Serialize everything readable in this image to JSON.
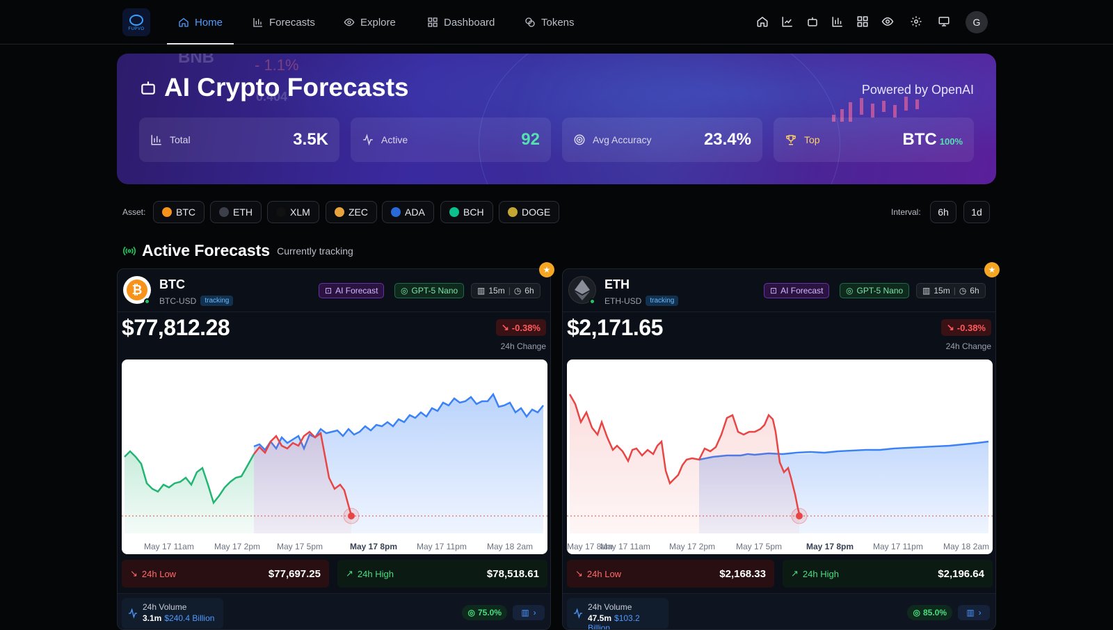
{
  "nav": {
    "logo_text": "FUPVO",
    "items": [
      {
        "label": "Home"
      },
      {
        "label": "Forecasts"
      },
      {
        "label": "Explore"
      },
      {
        "label": "Dashboard"
      },
      {
        "label": "Tokens"
      }
    ],
    "avatar_initial": "G"
  },
  "hero": {
    "title": "AI Crypto Forecasts",
    "powered_by": "Powered by OpenAI",
    "bg_ticker": "BNB",
    "bg_pct": "- 1.1%",
    "bg_num": "0.404",
    "stats": [
      {
        "label": "Total",
        "value": "3.5K",
        "icon": "bar-chart-icon"
      },
      {
        "label": "Active",
        "value": "92",
        "icon": "activity-icon"
      },
      {
        "label": "Avg Accuracy",
        "value": "23.4%",
        "icon": "target-icon"
      },
      {
        "label": "Top",
        "value": "BTC",
        "sub": "100%",
        "icon": "trophy-icon"
      }
    ]
  },
  "filters": {
    "asset_label": "Asset:",
    "assets": [
      "BTC",
      "ETH",
      "XLM",
      "ZEC",
      "ADA",
      "BCH",
      "DOGE"
    ],
    "interval_label": "Interval:",
    "intervals": [
      "6h",
      "1d"
    ]
  },
  "section": {
    "title": "Active Forecasts",
    "subtitle": "Currently tracking"
  },
  "cards": [
    {
      "symbol": "BTC",
      "pair": "BTC-USD",
      "tracking": "tracking",
      "badge_ai": "AI Forecast",
      "badge_model": "GPT-5 Nano",
      "interval_a": "15m",
      "interval_b": "6h",
      "price": "$77,812.28",
      "change": "-0.38%",
      "change_label": "24h Change",
      "low_label": "24h Low",
      "low_value": "$77,697.25",
      "high_label": "24h High",
      "high_value": "$78,518.61",
      "volume_label": "24h Volume",
      "volume": "3.1m",
      "volume_usd": "$240.4 Billion",
      "accuracy": "75.0%",
      "x_ticks": [
        "May 17 11am",
        "May 17 2pm",
        "May 17 5pm",
        "May 17 8pm",
        "May 17 11pm",
        "May 18 2am"
      ],
      "colors": {
        "history": "#22b573",
        "actual": "#e84545",
        "forecast": "#3b82f6"
      }
    },
    {
      "symbol": "ETH",
      "pair": "ETH-USD",
      "tracking": "tracking",
      "badge_ai": "AI Forecast",
      "badge_model": "GPT-5 Nano",
      "interval_a": "15m",
      "interval_b": "6h",
      "price": "$2,171.65",
      "change": "-0.38%",
      "change_label": "24h Change",
      "low_label": "24h Low",
      "low_value": "$2,168.33",
      "high_label": "24h High",
      "high_value": "$2,196.64",
      "volume_label": "24h Volume",
      "volume": "47.5m",
      "volume_usd": "$103.2 Billion",
      "accuracy": "85.0%",
      "x_ticks": [
        "May 17 8am",
        "May 17 11am",
        "May 17 2pm",
        "May 17 5pm",
        "May 17 8pm",
        "May 17 11pm",
        "May 18 2am"
      ],
      "colors": {
        "actual": "#e84545",
        "forecast": "#3b82f6"
      }
    }
  ]
}
